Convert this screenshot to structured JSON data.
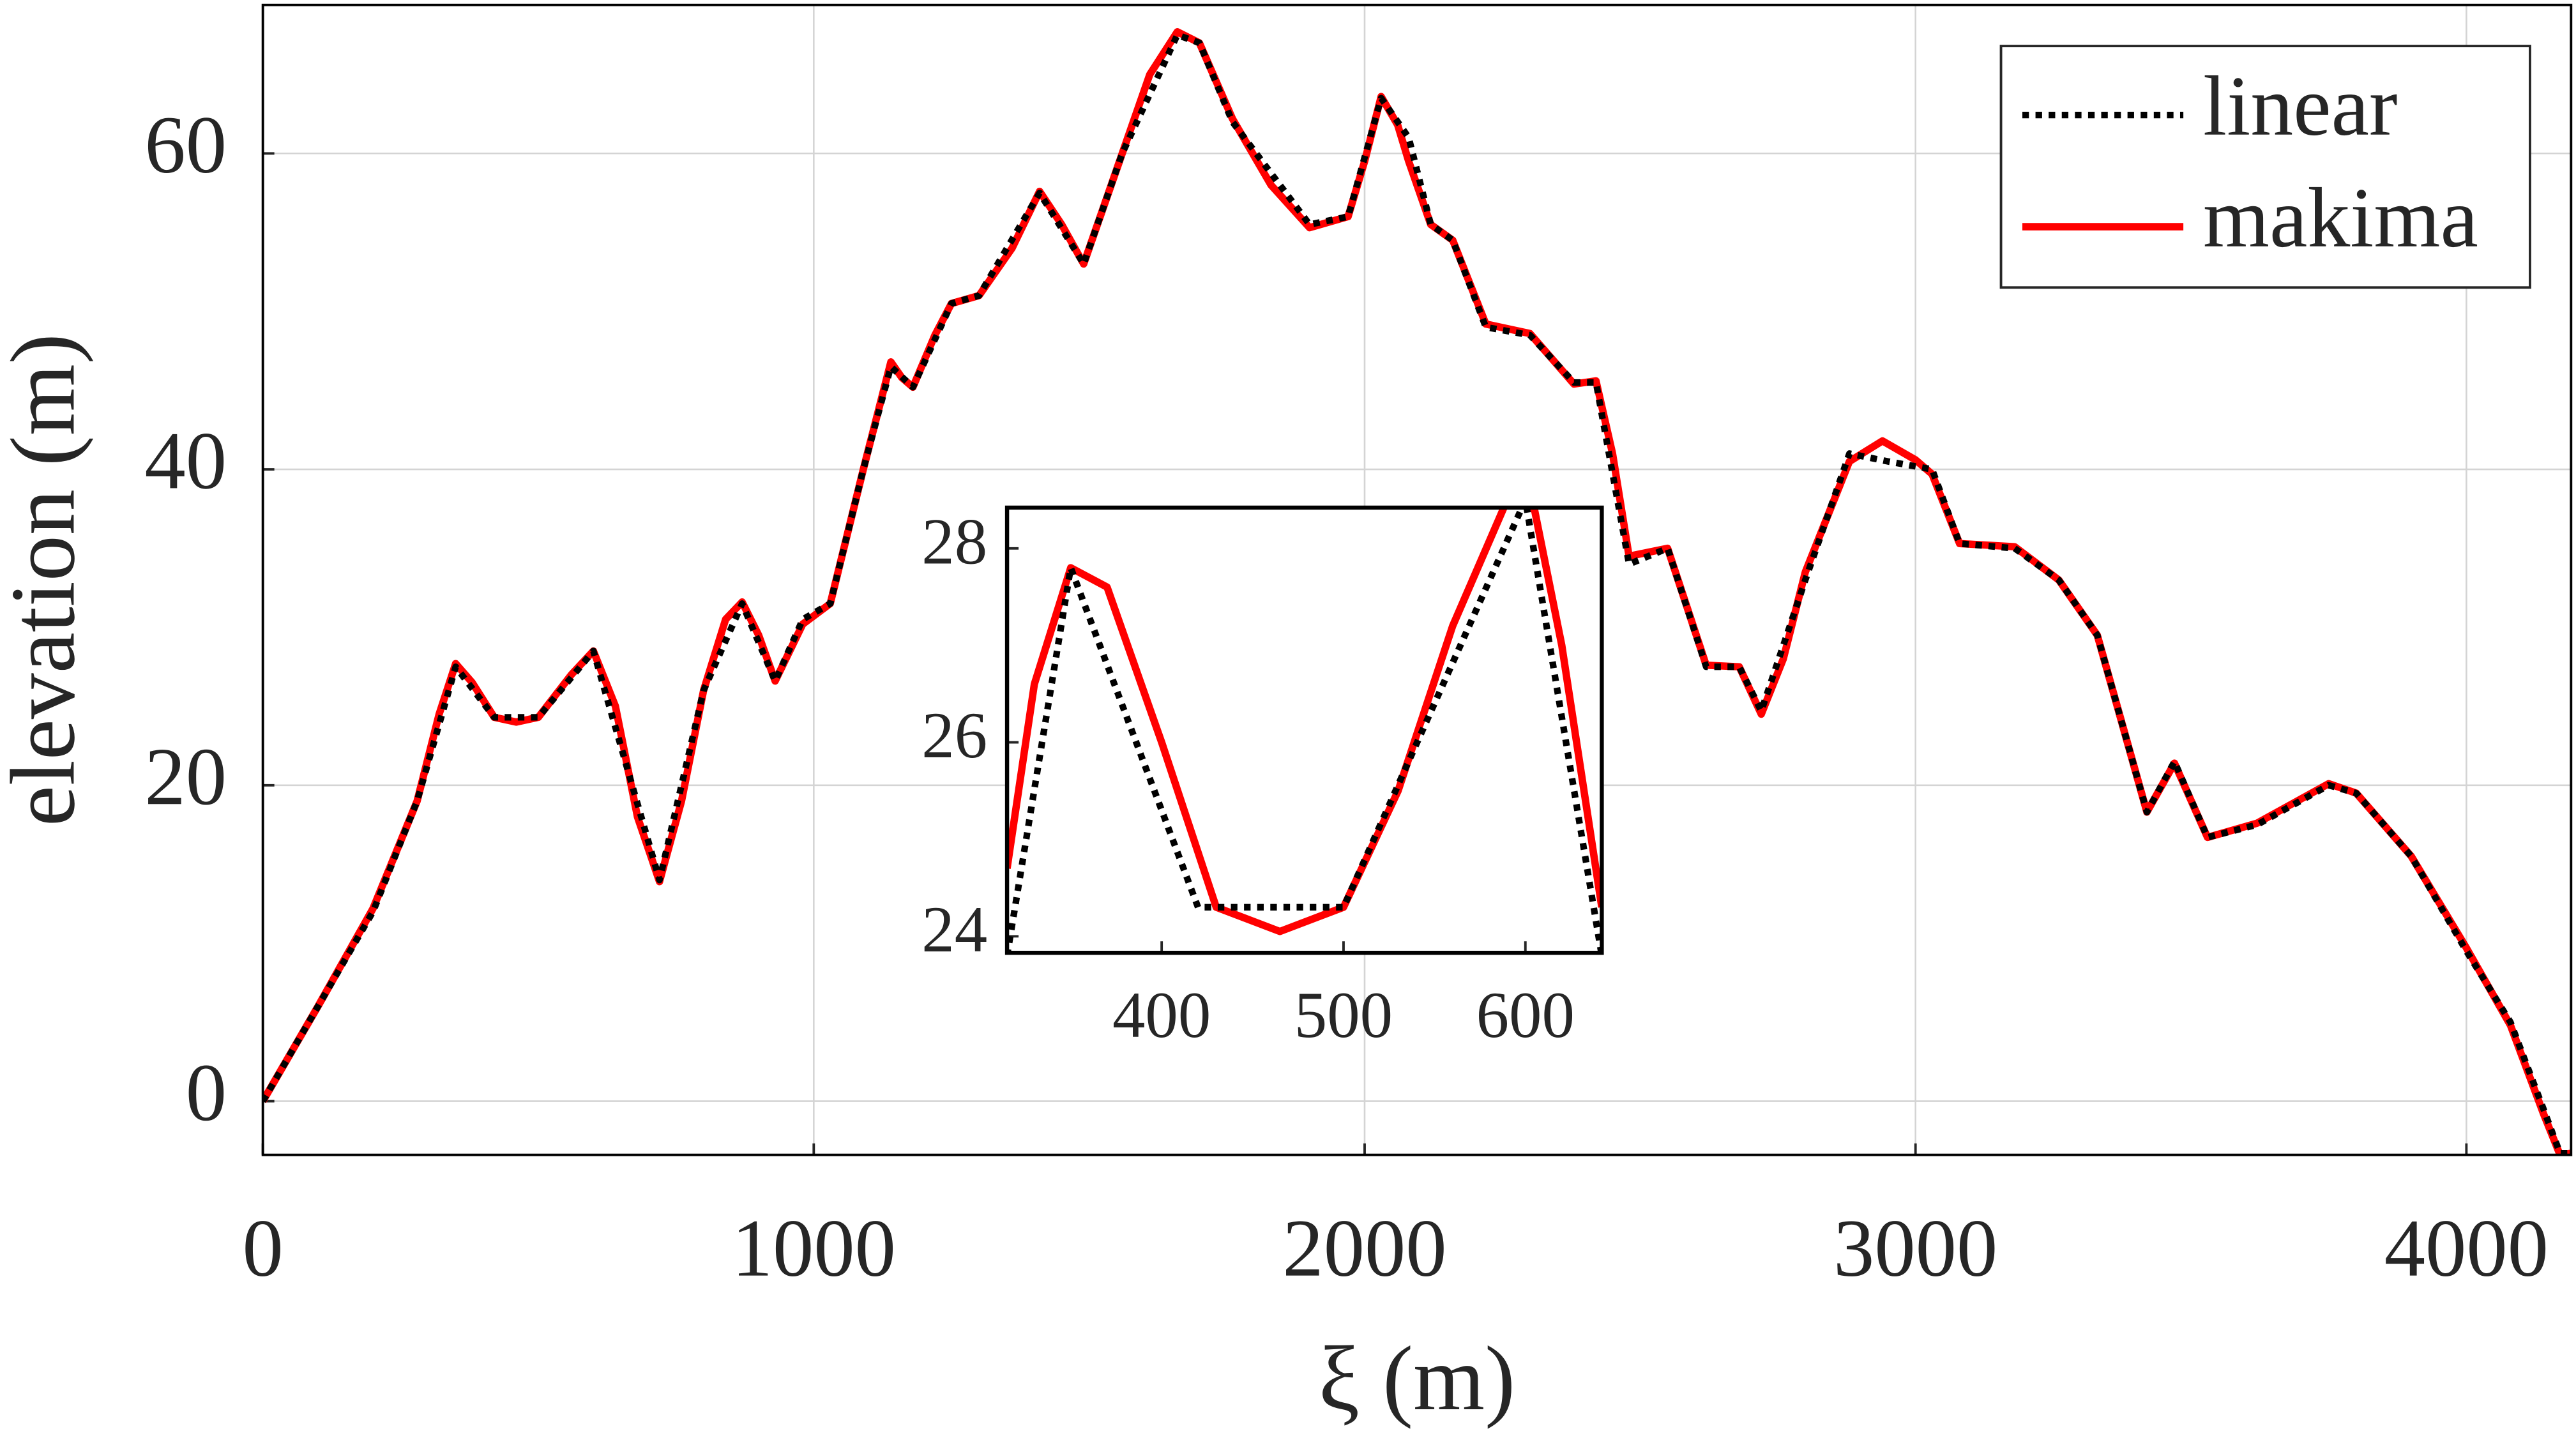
{
  "chart_data": [
    {
      "type": "line",
      "xlabel": "ξ (m)",
      "ylabel": "elevation (m)",
      "xlim": [
        0,
        4190
      ],
      "ylim": [
        -3.4,
        69.4
      ],
      "xticks": [
        0,
        1000,
        2000,
        3000,
        4000
      ],
      "yticks": [
        0,
        20,
        40,
        60
      ],
      "grid": true,
      "legend": "upper right",
      "series": [
        {
          "name": "linear",
          "color": "#000000",
          "style": "dotted",
          "x": [
            0,
            100,
            200,
            280,
            350,
            420,
            500,
            600,
            720,
            800,
            870,
            930,
            980,
            1030,
            1090,
            1140,
            1180,
            1250,
            1300,
            1410,
            1490,
            1560,
            1660,
            1700,
            1760,
            1900,
            1970,
            2030,
            2080,
            2120,
            2160,
            2220,
            2300,
            2380,
            2420,
            2480,
            2550,
            2620,
            2680,
            2720,
            2800,
            2880,
            2950,
            3030,
            3080,
            3180,
            3260,
            3330,
            3420,
            3470,
            3530,
            3620,
            3750,
            3800,
            3900,
            4000,
            4080,
            4140,
            4170,
            4190
          ],
          "values": [
            0,
            6,
            12,
            19,
            27.5,
            24.3,
            24.3,
            28.5,
            14,
            26,
            31.5,
            26.6,
            30.5,
            31.5,
            40,
            46.5,
            45.2,
            50.5,
            51,
            57.5,
            53,
            60,
            67.5,
            67,
            62,
            55.5,
            56,
            63.5,
            61,
            55.5,
            54.5,
            49,
            48.5,
            45.5,
            45.5,
            34,
            35,
            27.5,
            27.5,
            24.7,
            33,
            41,
            40.5,
            40,
            35.3,
            35,
            33,
            29.5,
            18.3,
            21.5,
            16.7,
            17.5,
            20,
            19.5,
            15.5,
            9.5,
            5,
            -0.5,
            -3.3,
            -3.3
          ]
        },
        {
          "name": "makima",
          "color": "#ff0000",
          "style": "solid",
          "x": [
            0,
            100,
            200,
            280,
            320,
            350,
            380,
            420,
            460,
            500,
            560,
            600,
            640,
            680,
            720,
            760,
            800,
            840,
            870,
            900,
            930,
            980,
            1030,
            1090,
            1140,
            1160,
            1180,
            1220,
            1250,
            1300,
            1360,
            1410,
            1450,
            1490,
            1530,
            1560,
            1610,
            1660,
            1700,
            1760,
            1830,
            1900,
            1970,
            2000,
            2030,
            2060,
            2080,
            2120,
            2160,
            2220,
            2300,
            2380,
            2420,
            2450,
            2480,
            2550,
            2620,
            2680,
            2720,
            2760,
            2800,
            2880,
            2940,
            3000,
            3030,
            3080,
            3180,
            3260,
            3330,
            3420,
            3470,
            3530,
            3620,
            3750,
            3800,
            3900,
            4000,
            4080,
            4140,
            4170,
            4190
          ],
          "values": [
            0,
            6,
            12.2,
            19,
            24.5,
            27.7,
            26.5,
            24.3,
            24,
            24.3,
            27,
            28.5,
            25,
            18,
            13.9,
            19,
            26,
            30.5,
            31.6,
            29.5,
            26.6,
            30.2,
            31.5,
            40,
            46.8,
            45.8,
            45.2,
            48.5,
            50.5,
            51,
            54,
            57.6,
            55.5,
            53,
            57,
            60,
            65,
            67.7,
            67,
            62.2,
            58,
            55.3,
            56,
            59.5,
            63.6,
            61.8,
            59.5,
            55.5,
            54.5,
            49.2,
            48.6,
            45.4,
            45.6,
            41,
            34.5,
            35,
            27.6,
            27.5,
            24.5,
            28,
            33.5,
            40.5,
            41.8,
            40.6,
            39.7,
            35.3,
            35.1,
            33,
            29.5,
            18.3,
            21.4,
            16.7,
            17.6,
            20.1,
            19.5,
            15.5,
            9.7,
            4.8,
            -0.8,
            -3.4,
            -3.3
          ]
        }
      ]
    },
    {
      "type": "line",
      "xlim": [
        315,
        642
      ],
      "ylim": [
        23.83,
        28.42
      ],
      "xticks": [
        400,
        500,
        600
      ],
      "yticks": [
        24,
        26,
        28
      ],
      "grid": false,
      "series": [
        {
          "name": "linear",
          "color": "#000000",
          "style": "dotted",
          "x": [
            315,
            350,
            420,
            500,
            600,
            642
          ],
          "values": [
            23.8,
            27.8,
            24.3,
            24.3,
            28.5,
            23.8
          ]
        },
        {
          "name": "makima",
          "color": "#ff0000",
          "style": "solid",
          "x": [
            315,
            330,
            350,
            370,
            400,
            430,
            465,
            500,
            530,
            560,
            590,
            605,
            620,
            642
          ],
          "values": [
            24.7,
            26.6,
            27.8,
            27.6,
            26,
            24.3,
            24.05,
            24.3,
            25.5,
            27.2,
            28.5,
            28.4,
            27,
            24.3
          ]
        }
      ]
    }
  ]
}
